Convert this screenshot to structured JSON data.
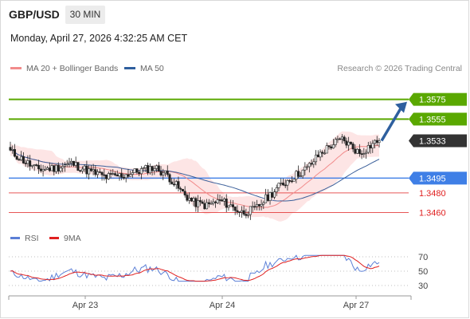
{
  "header": {
    "symbol": "GBP/USD",
    "interval": "30 MIN",
    "datetime": "Monday, April 27, 2026 4:32:25 AM CET"
  },
  "legend": {
    "ma20_label": "MA 20 + Bollinger Bands",
    "ma20_color": "#f28b8b",
    "ma50_label": "MA 50",
    "ma50_color": "#2f5f9e",
    "credit": "Research © 2026 Trading Central"
  },
  "osc_legend": {
    "rsi_label": "RSI",
    "rsi_color": "#5b7fd6",
    "ma9_label": "9MA",
    "ma9_color": "#e02020"
  },
  "chart_data": [
    {
      "type": "candlestick",
      "price_range": [
        1.3445,
        1.3595
      ],
      "x_ticks": [
        "Apr 23",
        "Apr 24",
        "Apr 27"
      ],
      "levels": [
        {
          "value": 1.3575,
          "label": "1.3575",
          "kind": "target",
          "color": "#5aa800"
        },
        {
          "value": 1.3555,
          "label": "1.3555",
          "kind": "target",
          "color": "#5aa800"
        },
        {
          "value": 1.3533,
          "label": "1.3533",
          "kind": "last",
          "color": "#333333"
        },
        {
          "value": 1.3495,
          "label": "1.3495",
          "kind": "pivot",
          "color": "#3f7fe6"
        },
        {
          "value": 1.348,
          "label": "1.3480",
          "kind": "support",
          "color": "#e02020"
        },
        {
          "value": 1.346,
          "label": "1.3460",
          "kind": "support",
          "color": "#e02020"
        }
      ],
      "arrow": {
        "from": 1.3533,
        "to": 1.3575,
        "direction": "up"
      }
    },
    {
      "type": "line",
      "name": "RSI",
      "y_ticks": [
        70,
        50,
        30
      ],
      "ylim": [
        20,
        80
      ],
      "grid_levels": [
        70,
        50,
        30
      ]
    }
  ]
}
